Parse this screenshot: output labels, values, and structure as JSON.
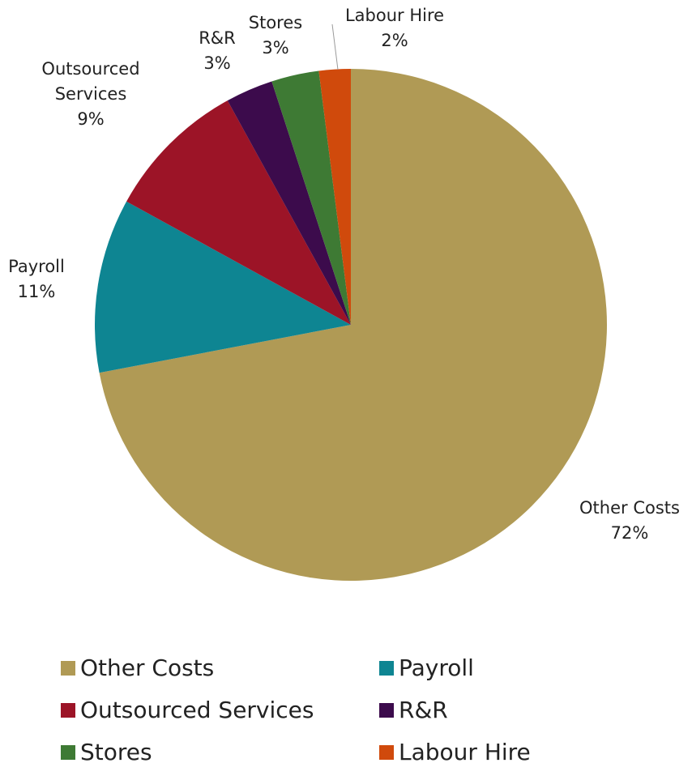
{
  "chart_data": {
    "type": "pie",
    "categories": [
      "Other Costs",
      "Payroll",
      "Outsourced Services",
      "R&R",
      "Stores",
      "Labour Hire"
    ],
    "values": [
      72,
      11,
      9,
      3,
      3,
      2
    ],
    "value_labels": [
      "72%",
      "11%",
      "9%",
      "3%",
      "3%",
      "2%"
    ],
    "colors": [
      "#b09a55",
      "#0e8592",
      "#9c1427",
      "#3c0b4c",
      "#3e7a34",
      "#d04a0c"
    ],
    "legend": "bottom"
  }
}
